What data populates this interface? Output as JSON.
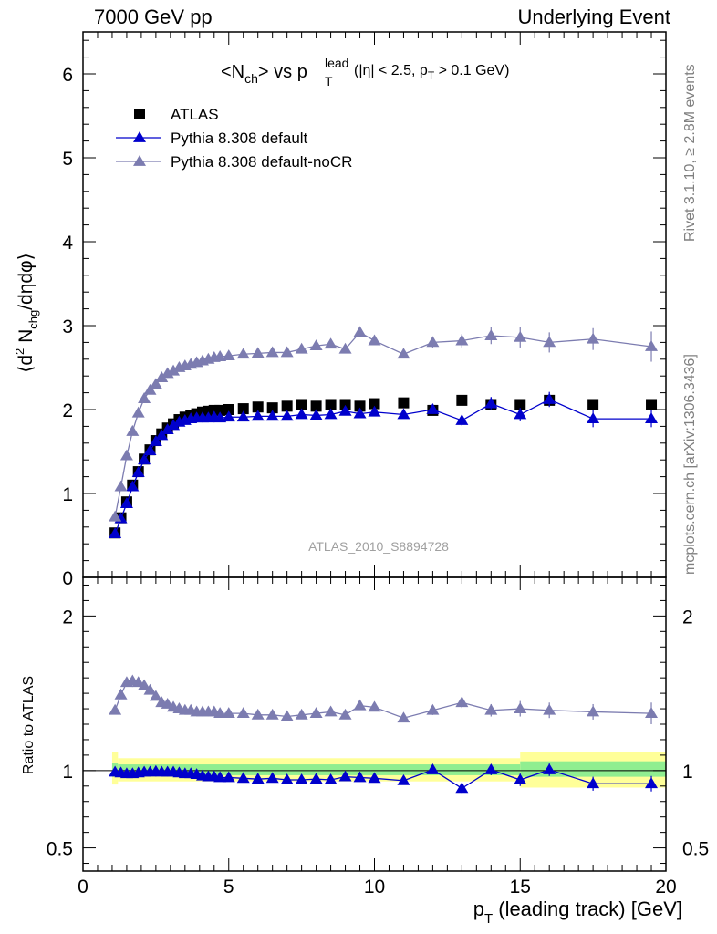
{
  "header": {
    "left": "7000 GeV pp",
    "right": "Underlying Event"
  },
  "side_labels": {
    "top": "Rivet 3.1.10, ≥ 2.8M events",
    "bottom": "mcplots.cern.ch [arXiv:1306.3436]"
  },
  "chart_data": {
    "type": "scatter",
    "title": {
      "main": "<N",
      "main_sub": "ch",
      "mid": "> vs p",
      "sup": "lead",
      "sub": "T",
      "cut": "(|η| < 2.5, p",
      "cut_sub": "T",
      "cut_end": " > 0.1 GeV)"
    },
    "analysis_label": "ATLAS_2010_S8894728",
    "xlabel": {
      "p": "p",
      "sub": "T",
      "rest": " (leading track) [GeV]"
    },
    "ylabel_main": {
      "open": "⟨d",
      "sup": "2",
      "n": " N",
      "sub": "chg",
      "rest": "/dηdφ⟩"
    },
    "ylabel_ratio": "Ratio to ATLAS",
    "xlim": [
      0,
      20
    ],
    "ylim_main": [
      0,
      6.5
    ],
    "ylim_ratio": [
      0.35,
      2.25
    ],
    "x_ticks": [
      "0",
      "5",
      "10",
      "15",
      "20"
    ],
    "y_ticks_main": [
      "0",
      "1",
      "2",
      "3",
      "4",
      "5",
      "6"
    ],
    "y_ticks_ratio": [
      "0.5",
      "1",
      "2"
    ],
    "legend_position": "top-left",
    "series": [
      {
        "name": "ATLAS",
        "color": "#000000",
        "marker": "square",
        "x": [
          1.1,
          1.3,
          1.5,
          1.7,
          1.9,
          2.1,
          2.3,
          2.5,
          2.7,
          2.9,
          3.1,
          3.3,
          3.5,
          3.7,
          3.9,
          4.1,
          4.3,
          4.5,
          4.7,
          5.0,
          5.5,
          6.0,
          6.5,
          7.0,
          7.5,
          8.0,
          8.5,
          9.0,
          9.5,
          10.0,
          11.0,
          12.0,
          13.0,
          14.0,
          15.0,
          16.0,
          17.5,
          19.5
        ],
        "y": [
          0.53,
          0.71,
          0.9,
          1.1,
          1.26,
          1.41,
          1.52,
          1.63,
          1.71,
          1.78,
          1.83,
          1.88,
          1.91,
          1.93,
          1.95,
          1.97,
          1.98,
          1.99,
          1.99,
          2.0,
          2.01,
          2.03,
          2.02,
          2.04,
          2.06,
          2.04,
          2.06,
          2.06,
          2.04,
          2.07,
          2.08,
          1.99,
          2.11,
          2.06,
          2.06,
          2.11,
          2.06,
          2.06
        ]
      },
      {
        "name": "Pythia 8.308 default",
        "color": "#0000cc",
        "marker": "triangle",
        "x": [
          1.1,
          1.3,
          1.5,
          1.7,
          1.9,
          2.1,
          2.3,
          2.5,
          2.7,
          2.9,
          3.1,
          3.3,
          3.5,
          3.7,
          3.9,
          4.1,
          4.3,
          4.5,
          4.7,
          5.0,
          5.5,
          6.0,
          6.5,
          7.0,
          7.5,
          8.0,
          8.5,
          9.0,
          9.5,
          10.0,
          11.0,
          12.0,
          13.0,
          14.0,
          15.0,
          16.0,
          17.5,
          19.5
        ],
        "y": [
          0.52,
          0.7,
          0.88,
          1.08,
          1.25,
          1.4,
          1.51,
          1.62,
          1.69,
          1.76,
          1.81,
          1.85,
          1.87,
          1.89,
          1.9,
          1.9,
          1.9,
          1.91,
          1.9,
          1.91,
          1.91,
          1.92,
          1.92,
          1.92,
          1.94,
          1.93,
          1.94,
          1.98,
          1.95,
          1.97,
          1.94,
          2.0,
          1.87,
          2.07,
          1.94,
          2.12,
          1.89,
          1.89
        ],
        "err": [
          0.01,
          0.01,
          0.01,
          0.01,
          0.01,
          0.01,
          0.01,
          0.01,
          0.01,
          0.01,
          0.01,
          0.01,
          0.01,
          0.01,
          0.01,
          0.01,
          0.01,
          0.01,
          0.01,
          0.01,
          0.01,
          0.01,
          0.01,
          0.02,
          0.02,
          0.02,
          0.02,
          0.03,
          0.03,
          0.03,
          0.04,
          0.05,
          0.06,
          0.08,
          0.08,
          0.09,
          0.1,
          0.1
        ],
        "ratio": [
          0.99,
          0.985,
          0.98,
          0.98,
          0.985,
          0.99,
          0.99,
          0.995,
          0.99,
          0.99,
          0.99,
          0.985,
          0.98,
          0.98,
          0.975,
          0.965,
          0.96,
          0.96,
          0.955,
          0.955,
          0.95,
          0.945,
          0.95,
          0.94,
          0.94,
          0.945,
          0.94,
          0.96,
          0.955,
          0.95,
          0.935,
          1.005,
          0.885,
          1.005,
          0.94,
          1.005,
          0.915,
          0.915
        ],
        "ratio_err": [
          0.01,
          0.01,
          0.01,
          0.01,
          0.01,
          0.01,
          0.01,
          0.01,
          0.01,
          0.01,
          0.01,
          0.01,
          0.01,
          0.01,
          0.01,
          0.01,
          0.01,
          0.01,
          0.01,
          0.01,
          0.01,
          0.01,
          0.01,
          0.01,
          0.01,
          0.01,
          0.01,
          0.015,
          0.015,
          0.015,
          0.02,
          0.025,
          0.03,
          0.035,
          0.04,
          0.04,
          0.045,
          0.05
        ]
      },
      {
        "name": "Pythia 8.308 default-noCR",
        "color": "#7c7cb0",
        "marker": "triangle",
        "x": [
          1.1,
          1.3,
          1.5,
          1.7,
          1.9,
          2.1,
          2.3,
          2.5,
          2.7,
          2.9,
          3.1,
          3.3,
          3.5,
          3.7,
          3.9,
          4.1,
          4.3,
          4.5,
          4.7,
          5.0,
          5.5,
          6.0,
          6.5,
          7.0,
          7.5,
          8.0,
          8.5,
          9.0,
          9.5,
          10.0,
          11.0,
          12.0,
          13.0,
          14.0,
          15.0,
          16.0,
          17.5,
          19.5
        ],
        "y": [
          0.72,
          1.08,
          1.45,
          1.74,
          1.96,
          2.13,
          2.23,
          2.3,
          2.38,
          2.43,
          2.46,
          2.5,
          2.52,
          2.54,
          2.56,
          2.58,
          2.6,
          2.62,
          2.63,
          2.64,
          2.66,
          2.67,
          2.68,
          2.68,
          2.72,
          2.76,
          2.78,
          2.72,
          2.92,
          2.82,
          2.66,
          2.8,
          2.82,
          2.88,
          2.86,
          2.8,
          2.84,
          2.75
        ],
        "err": [
          0.01,
          0.01,
          0.01,
          0.01,
          0.01,
          0.01,
          0.01,
          0.01,
          0.01,
          0.01,
          0.01,
          0.01,
          0.01,
          0.01,
          0.01,
          0.01,
          0.01,
          0.01,
          0.01,
          0.01,
          0.01,
          0.01,
          0.02,
          0.02,
          0.02,
          0.03,
          0.03,
          0.04,
          0.05,
          0.05,
          0.05,
          0.06,
          0.08,
          0.1,
          0.12,
          0.12,
          0.13,
          0.18
        ],
        "ratio": [
          1.39,
          1.49,
          1.57,
          1.58,
          1.57,
          1.55,
          1.52,
          1.48,
          1.44,
          1.43,
          1.41,
          1.4,
          1.39,
          1.39,
          1.38,
          1.38,
          1.38,
          1.38,
          1.37,
          1.37,
          1.37,
          1.36,
          1.36,
          1.35,
          1.36,
          1.37,
          1.38,
          1.36,
          1.42,
          1.41,
          1.34,
          1.39,
          1.44,
          1.39,
          1.4,
          1.39,
          1.38,
          1.37
        ],
        "ratio_err": [
          0.01,
          0.01,
          0.01,
          0.01,
          0.01,
          0.01,
          0.01,
          0.01,
          0.01,
          0.01,
          0.01,
          0.01,
          0.01,
          0.01,
          0.01,
          0.01,
          0.01,
          0.01,
          0.01,
          0.01,
          0.01,
          0.01,
          0.01,
          0.015,
          0.015,
          0.015,
          0.015,
          0.02,
          0.02,
          0.02,
          0.025,
          0.03,
          0.035,
          0.04,
          0.05,
          0.05,
          0.05,
          0.07
        ]
      }
    ],
    "uncertainty_bands": {
      "inner_color": "#90ee90",
      "outer_color": "#ffff99",
      "segments": [
        {
          "x": [
            1.0,
            1.2
          ],
          "inner": [
            0.96,
            1.05
          ],
          "outer": [
            0.91,
            1.12
          ]
        },
        {
          "x": [
            1.2,
            15.0
          ],
          "inner": [
            0.97,
            1.04
          ],
          "outer": [
            0.93,
            1.08
          ]
        },
        {
          "x": [
            15.0,
            20.0
          ],
          "inner": [
            0.96,
            1.06
          ],
          "outer": [
            0.89,
            1.12
          ]
        }
      ]
    }
  }
}
